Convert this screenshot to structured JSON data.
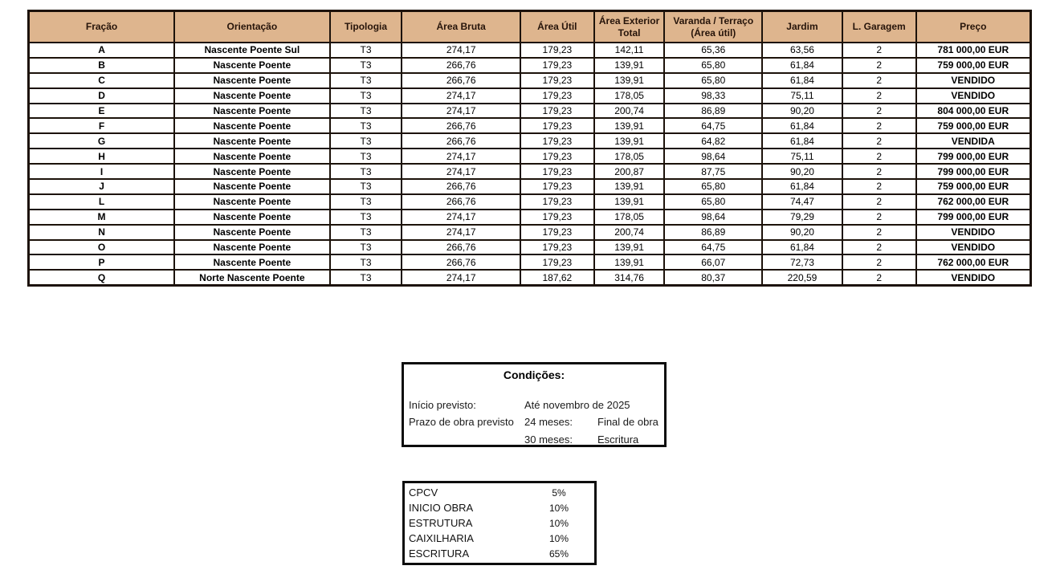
{
  "colors": {
    "header_bg": "#DEB58E",
    "header_text": "#26140A",
    "table_border": "#1C120A",
    "box_border": "#0D0D0D"
  },
  "table": {
    "col_keys": [
      "fracao",
      "orientacao",
      "tipologia",
      "area-bruta",
      "area-util",
      "area-exterior-total",
      "varanda-terraco",
      "jardim",
      "l-garagem",
      "preco"
    ],
    "headers": [
      "Fração",
      "Orientação",
      "Tipologia",
      "Área Bruta",
      "Área Útil",
      "Área Exterior Total",
      "Varanda / Terraço (Área útil)",
      "Jardim",
      "L. Garagem",
      "Preço"
    ],
    "rows": [
      [
        "A",
        "Nascente Poente Sul",
        "T3",
        "274,17",
        "179,23",
        "142,11",
        "65,36",
        "63,56",
        "2",
        "781 000,00 EUR"
      ],
      [
        "B",
        "Nascente Poente",
        "T3",
        "266,76",
        "179,23",
        "139,91",
        "65,80",
        "61,84",
        "2",
        "759 000,00 EUR"
      ],
      [
        "C",
        "Nascente Poente",
        "T3",
        "266,76",
        "179,23",
        "139,91",
        "65,80",
        "61,84",
        "2",
        "VENDIDO"
      ],
      [
        "D",
        "Nascente Poente",
        "T3",
        "274,17",
        "179,23",
        "178,05",
        "98,33",
        "75,11",
        "2",
        "VENDIDO"
      ],
      [
        "E",
        "Nascente Poente",
        "T3",
        "274,17",
        "179,23",
        "200,74",
        "86,89",
        "90,20",
        "2",
        "804 000,00 EUR"
      ],
      [
        "F",
        "Nascente Poente",
        "T3",
        "266,76",
        "179,23",
        "139,91",
        "64,75",
        "61,84",
        "2",
        "759 000,00 EUR"
      ],
      [
        "G",
        "Nascente Poente",
        "T3",
        "266,76",
        "179,23",
        "139,91",
        "64,82",
        "61,84",
        "2",
        "VENDIDA"
      ],
      [
        "H",
        "Nascente Poente",
        "T3",
        "274,17",
        "179,23",
        "178,05",
        "98,64",
        "75,11",
        "2",
        "799 000,00 EUR"
      ],
      [
        "I",
        "Nascente Poente",
        "T3",
        "274,17",
        "179,23",
        "200,87",
        "87,75",
        "90,20",
        "2",
        "799 000,00 EUR"
      ],
      [
        "J",
        "Nascente Poente",
        "T3",
        "266,76",
        "179,23",
        "139,91",
        "65,80",
        "61,84",
        "2",
        "759 000,00 EUR"
      ],
      [
        "L",
        "Nascente Poente",
        "T3",
        "266,76",
        "179,23",
        "139,91",
        "65,80",
        "74,47",
        "2",
        "762 000,00 EUR"
      ],
      [
        "M",
        "Nascente Poente",
        "T3",
        "274,17",
        "179,23",
        "178,05",
        "98,64",
        "79,29",
        "2",
        "799 000,00 EUR"
      ],
      [
        "N",
        "Nascente Poente",
        "T3",
        "274,17",
        "179,23",
        "200,74",
        "86,89",
        "90,20",
        "2",
        "VENDIDO"
      ],
      [
        "O",
        "Nascente Poente",
        "T3",
        "266,76",
        "179,23",
        "139,91",
        "64,75",
        "61,84",
        "2",
        "VENDIDO"
      ],
      [
        "P",
        "Nascente Poente",
        "T3",
        "266,76",
        "179,23",
        "139,91",
        "66,07",
        "72,73",
        "2",
        "762 000,00 EUR"
      ],
      [
        "Q",
        "Norte Nascente Poente",
        "T3",
        "274,17",
        "187,62",
        "314,76",
        "80,37",
        "220,59",
        "2",
        "VENDIDO"
      ]
    ]
  },
  "conditions": {
    "title": "Condições:",
    "rows": [
      {
        "label": "Início previsto:",
        "col2": "Até novembro de 2025",
        "col3": ""
      },
      {
        "label": "Prazo de obra previsto",
        "col2": "24 meses:",
        "col3": "Final de obra"
      },
      {
        "label": "",
        "col2": "30 meses:",
        "col3": "Escritura"
      }
    ]
  },
  "payments": {
    "items": [
      {
        "label": "CPCV",
        "value": "5%"
      },
      {
        "label": "INICIO OBRA",
        "value": "10%"
      },
      {
        "label": "ESTRUTURA",
        "value": "10%"
      },
      {
        "label": "CAIXILHARIA",
        "value": "10%"
      },
      {
        "label": "ESCRITURA",
        "value": "65%"
      }
    ]
  }
}
